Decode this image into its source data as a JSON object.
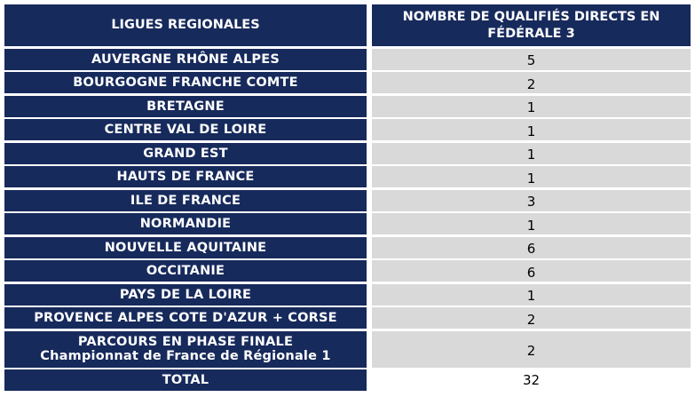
{
  "table": {
    "header": [
      "LIGUES REGIONALES",
      "NOMBRE DE QUALIFIÉS DIRECTS EN FÉDÉRALE 3"
    ],
    "rows": [
      [
        "AUVERGNE RHÔNE ALPES",
        5
      ],
      [
        "BOURGOGNE FRANCHE COMTE",
        2
      ],
      [
        "BRETAGNE",
        1
      ],
      [
        "CENTRE VAL DE LOIRE",
        1
      ],
      [
        "GRAND EST",
        1
      ],
      [
        "HAUTS DE FRANCE",
        1
      ],
      [
        "ILE DE FRANCE",
        3
      ],
      [
        "NORMANDIE",
        1
      ],
      [
        "NOUVELLE AQUITAINE",
        6
      ],
      [
        "OCCITANIE",
        6
      ],
      [
        "PAYS DE LA LOIRE",
        1
      ],
      [
        "PROVENCE ALPES COTE D'AZUR + CORSE",
        2
      ],
      [
        [
          "PARCOURS EN PHASE FINALE",
          "Championnat de France de Régionale 1"
        ],
        2
      ]
    ],
    "total": [
      "TOTAL",
      32
    ]
  }
}
